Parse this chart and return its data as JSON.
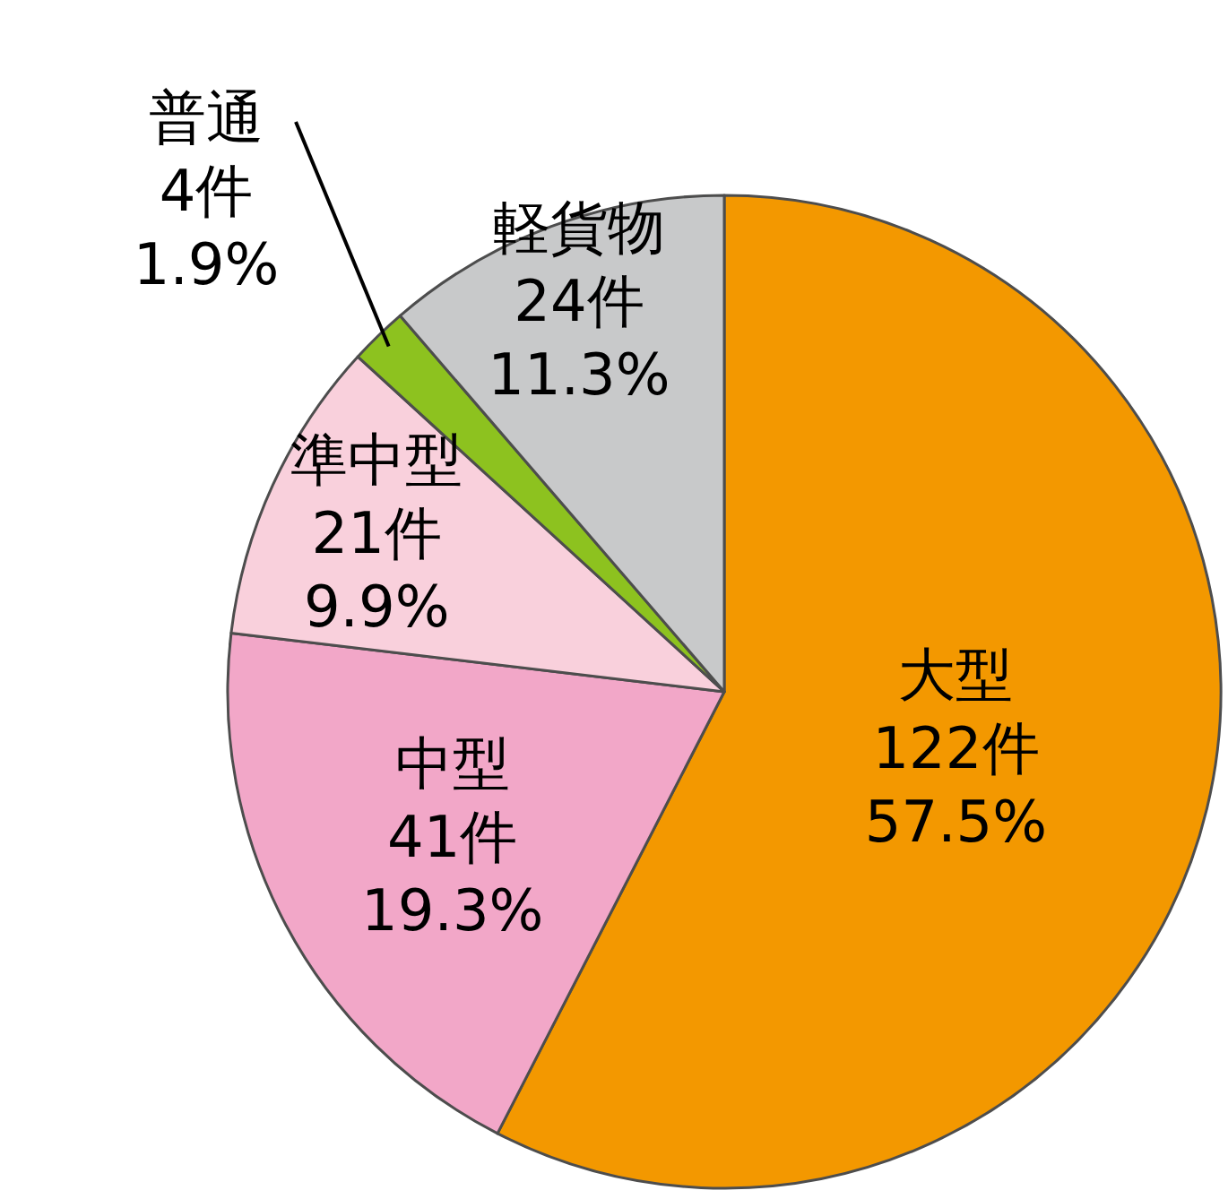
{
  "chart_data": {
    "type": "pie",
    "categories": [
      "大型",
      "中型",
      "準中型",
      "普通",
      "軽貨物"
    ],
    "values": [
      122,
      41,
      21,
      4,
      24
    ],
    "value_labels": [
      "122件\n57.5%",
      "41件\n19.3%",
      "21件\n9.9%",
      "4件\n1.9%",
      "24件\n11.3%"
    ],
    "colors": [
      "#f39800",
      "#f2a7c8",
      "#f9d0dc",
      "#8dc21f",
      "#c8c9ca"
    ]
  }
}
